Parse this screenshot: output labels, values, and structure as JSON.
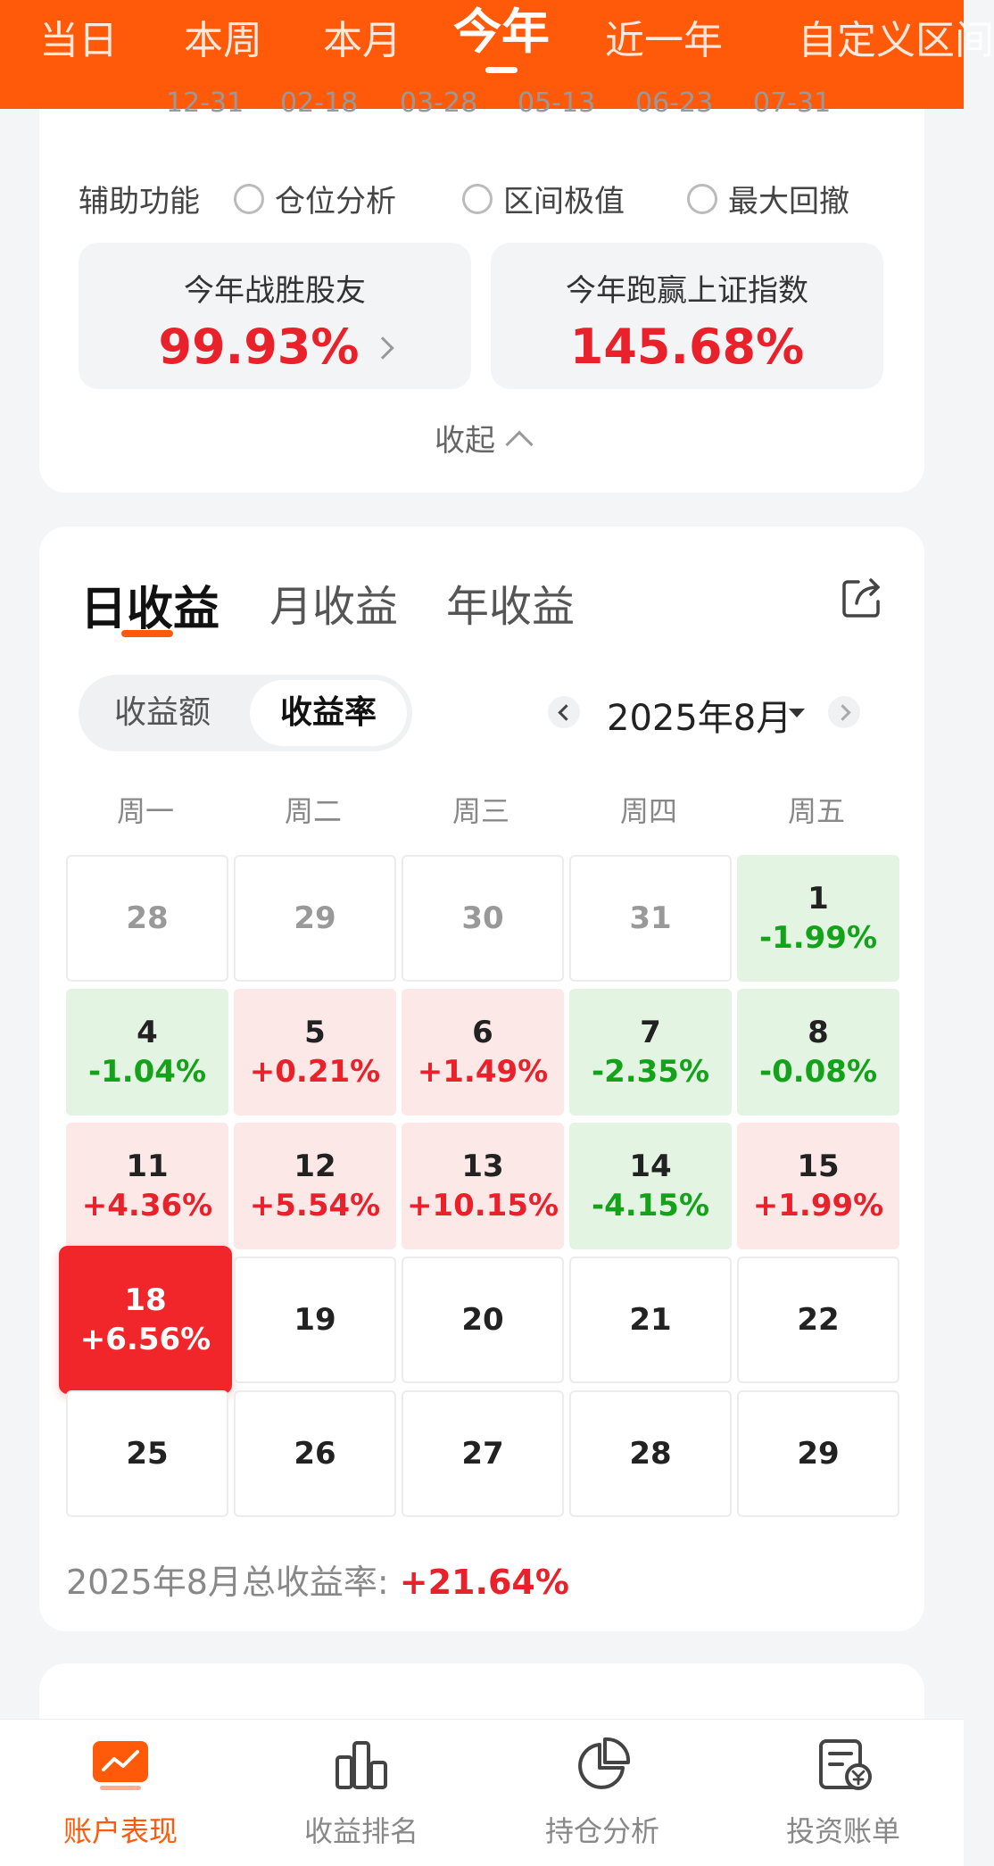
{
  "period_tabs": [
    {
      "label": "当日"
    },
    {
      "label": "本周"
    },
    {
      "label": "本月"
    },
    {
      "label": "今年",
      "active": true
    },
    {
      "label": "近一年"
    },
    {
      "label": "自定义区间"
    }
  ],
  "chart_axis_partial": [
    "12-31",
    "02-18",
    "03-28",
    "05-13",
    "06-23",
    "07-31"
  ],
  "aux": {
    "label": "辅助功能",
    "options": [
      "仓位分析",
      "区间极值",
      "最大回撤"
    ]
  },
  "stats": [
    {
      "label": "今年战胜股友",
      "value": "99.93%"
    },
    {
      "label": "今年跑赢上证指数",
      "value": "145.68%"
    }
  ],
  "collapse_label": "收起",
  "returns_tabs": [
    "日收益",
    "月收益",
    "年收益"
  ],
  "segment": [
    "收益额",
    "收益率"
  ],
  "month_label": "2025年8月",
  "weekdays": [
    "周一",
    "周二",
    "周三",
    "周四",
    "周五"
  ],
  "days": [
    {
      "d": "28",
      "v": "",
      "type": "muted"
    },
    {
      "d": "29",
      "v": "",
      "type": "muted"
    },
    {
      "d": "30",
      "v": "",
      "type": "muted"
    },
    {
      "d": "31",
      "v": "",
      "type": "muted"
    },
    {
      "d": "1",
      "v": "-1.99%",
      "type": "down"
    },
    {
      "d": "4",
      "v": "-1.04%",
      "type": "down"
    },
    {
      "d": "5",
      "v": "+0.21%",
      "type": "up"
    },
    {
      "d": "6",
      "v": "+1.49%",
      "type": "up"
    },
    {
      "d": "7",
      "v": "-2.35%",
      "type": "down"
    },
    {
      "d": "8",
      "v": "-0.08%",
      "type": "down"
    },
    {
      "d": "11",
      "v": "+4.36%",
      "type": "up"
    },
    {
      "d": "12",
      "v": "+5.54%",
      "type": "up"
    },
    {
      "d": "13",
      "v": "+10.15%",
      "type": "up"
    },
    {
      "d": "14",
      "v": "-4.15%",
      "type": "down"
    },
    {
      "d": "15",
      "v": "+1.99%",
      "type": "up"
    },
    {
      "d": "18",
      "v": "+6.56%",
      "type": "highlight"
    },
    {
      "d": "19",
      "v": "",
      "type": "plain"
    },
    {
      "d": "20",
      "v": "",
      "type": "plain"
    },
    {
      "d": "21",
      "v": "",
      "type": "plain"
    },
    {
      "d": "22",
      "v": "",
      "type": "plain"
    },
    {
      "d": "25",
      "v": "",
      "type": "plain"
    },
    {
      "d": "26",
      "v": "",
      "type": "plain"
    },
    {
      "d": "27",
      "v": "",
      "type": "plain"
    },
    {
      "d": "28",
      "v": "",
      "type": "plain"
    },
    {
      "d": "29",
      "v": "",
      "type": "plain"
    }
  ],
  "total": {
    "label": "2025年8月总收益率:",
    "value": "+21.64%"
  },
  "bottom_nav": [
    {
      "label": "账户表现",
      "icon": "trend-chart-icon",
      "active": true
    },
    {
      "label": "收益排名",
      "icon": "bar-chart-icon"
    },
    {
      "label": "持仓分析",
      "icon": "pie-chart-icon"
    },
    {
      "label": "投资账单",
      "icon": "bill-icon"
    }
  ],
  "colors": {
    "accent": "#ff5a0a",
    "up": "#e8212a",
    "down": "#14a21a"
  }
}
